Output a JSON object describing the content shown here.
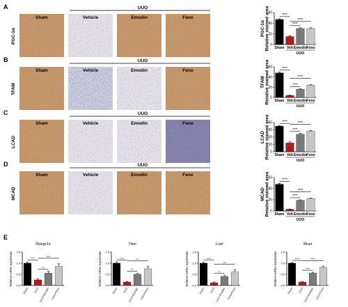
{
  "colors": {
    "sham": "#000000",
    "vehicle": "#b01c1c",
    "emodin": "#7a7a7a",
    "feno": "#c6c6c6",
    "tissue_brown": "#b0794a",
    "tissue_blue": "#7b88ad"
  },
  "panels": [
    {
      "letter": "A",
      "marker": "PGC-1α",
      "group_header": "UUO",
      "image_labels": [
        "Sham",
        "Vehicle",
        "Emodin",
        "Feno"
      ],
      "image_styles": [
        "brown",
        "light",
        "brown",
        "brown"
      ]
    },
    {
      "letter": "B",
      "marker": "TFAM",
      "group_header": "UUO",
      "image_labels": [
        "Sham",
        "Vehicle",
        "Emodin",
        "Feno"
      ],
      "image_styles": [
        "brown",
        "blue",
        "light",
        "brown"
      ]
    },
    {
      "letter": "C",
      "marker": "LCAD",
      "group_header": "UUO",
      "image_labels": [
        "Sham",
        "Vehicle",
        "Emodin",
        "Feno"
      ],
      "image_styles": [
        "brown",
        "light",
        "light",
        "dark"
      ]
    },
    {
      "letter": "D",
      "marker": "MCAD",
      "group_header": "UUO",
      "image_labels": [
        "Sham",
        "Vehicle",
        "Emodin",
        "Feno"
      ],
      "image_styles": [
        "brown",
        "light",
        "brown",
        "brown"
      ]
    }
  ],
  "chart_data": [
    {
      "type": "bar",
      "panel": "A",
      "ylabel_lines": [
        "PGC-1α",
        "Relative stained area"
      ],
      "categories": [
        "Sham",
        "Veh",
        "Emodin",
        "Feno"
      ],
      "group_label": "UUO",
      "values": [
        47,
        15,
        30,
        30
      ],
      "errors": [
        1.5,
        1.5,
        1.5,
        1.5
      ],
      "ylim": [
        0,
        60
      ],
      "yticks": [
        0,
        20,
        40,
        60
      ],
      "significance": [
        {
          "from": 0,
          "to": 1,
          "label": "****"
        },
        {
          "from": 1,
          "to": 2,
          "label": "****"
        },
        {
          "from": 1,
          "to": 3,
          "label": "****"
        }
      ]
    },
    {
      "type": "bar",
      "panel": "B",
      "ylabel_lines": [
        "TFAM",
        "Relative stained area"
      ],
      "categories": [
        "Sham",
        "Veh",
        "Emodin",
        "Feno"
      ],
      "group_label": "UUO",
      "values": [
        48,
        4,
        16,
        24
      ],
      "errors": [
        1.5,
        1,
        1,
        1
      ],
      "ylim": [
        0,
        60
      ],
      "yticks": [
        0,
        20,
        40,
        60
      ],
      "significance": [
        {
          "from": 0,
          "to": 1,
          "label": "****"
        },
        {
          "from": 1,
          "to": 2,
          "label": "****"
        },
        {
          "from": 1,
          "to": 3,
          "label": "****"
        }
      ]
    },
    {
      "type": "bar",
      "panel": "C",
      "ylabel_lines": [
        "LCAD",
        "Relative stained area"
      ],
      "categories": [
        "Sham",
        "Veh",
        "Emodin",
        "Feno"
      ],
      "group_label": "UUO",
      "values": [
        35,
        12,
        24,
        28
      ],
      "errors": [
        1,
        1.5,
        1,
        1
      ],
      "ylim": [
        0,
        40
      ],
      "yticks": [
        0,
        10,
        20,
        30,
        40
      ],
      "significance": [
        {
          "from": 0,
          "to": 1,
          "label": "****"
        },
        {
          "from": 1,
          "to": 2,
          "label": "****"
        },
        {
          "from": 1,
          "to": 3,
          "label": "****"
        }
      ]
    },
    {
      "type": "bar",
      "panel": "D",
      "ylabel_lines": [
        "MCAD",
        "Relative stained area"
      ],
      "categories": [
        "Sham",
        "Veh",
        "Emodin",
        "Feno"
      ],
      "group_label": "UUO",
      "values": [
        48,
        3,
        19,
        22
      ],
      "errors": [
        1.5,
        0.5,
        1,
        1
      ],
      "ylim": [
        0,
        60
      ],
      "yticks": [
        0,
        20,
        40,
        60
      ],
      "significance": [
        {
          "from": 0,
          "to": 1,
          "label": "****"
        },
        {
          "from": 1,
          "to": 2,
          "label": "****"
        },
        {
          "from": 1,
          "to": 3,
          "label": "****"
        }
      ]
    },
    {
      "type": "bar",
      "panel": "E",
      "title": "Ppargc1a",
      "ylabel": "Relative mRNA expression",
      "categories": [
        "Sham",
        "UUO",
        "UUO+Emodin",
        "UUO+Feno"
      ],
      "values": [
        1.0,
        0.25,
        0.55,
        0.85
      ],
      "errors": [
        0.05,
        0.04,
        0.08,
        0.12
      ],
      "ylim": [
        0,
        1.5
      ],
      "yticks": [
        0,
        0.5,
        1.0,
        1.5
      ],
      "significance": [
        {
          "from": 0,
          "to": 1,
          "label": "****"
        },
        {
          "from": 1,
          "to": 2,
          "label": "**"
        },
        {
          "from": 1,
          "to": 3,
          "label": "****"
        }
      ]
    },
    {
      "type": "bar",
      "panel": "E",
      "title": "Tfam",
      "ylabel": "Relative mRNA expression",
      "categories": [
        "Sham",
        "UUO",
        "UUO+Emodin",
        "UUO+Feno"
      ],
      "values": [
        1.0,
        0.15,
        0.5,
        0.75
      ],
      "errors": [
        0.04,
        0.03,
        0.05,
        0.1
      ],
      "ylim": [
        0,
        1.5
      ],
      "yticks": [
        0,
        0.5,
        1.0,
        1.5
      ],
      "significance": [
        {
          "from": 0,
          "to": 1,
          "label": "****"
        },
        {
          "from": 1,
          "to": 2,
          "label": "**"
        },
        {
          "from": 1,
          "to": 3,
          "label": "***"
        }
      ]
    },
    {
      "type": "bar",
      "panel": "E",
      "title": "Lcad",
      "ylabel": "Relative mRNA expression",
      "categories": [
        "Sham",
        "UUO",
        "UUO+Emodin",
        "UUO+Feno"
      ],
      "values": [
        1.0,
        0.12,
        0.4,
        0.6
      ],
      "errors": [
        0.04,
        0.04,
        0.05,
        0.1
      ],
      "ylim": [
        0,
        1.5
      ],
      "yticks": [
        0,
        0.5,
        1.0,
        1.5
      ],
      "significance": [
        {
          "from": 0,
          "to": 1,
          "label": "****"
        },
        {
          "from": 1,
          "to": 2,
          "label": "**"
        },
        {
          "from": 1,
          "to": 3,
          "label": "***"
        }
      ]
    },
    {
      "type": "bar",
      "panel": "E",
      "title": "Mcad",
      "ylabel": "Relative mRNA expression",
      "categories": [
        "Sham",
        "UUO",
        "UUO+Emodin",
        "UUO+Feno"
      ],
      "values": [
        1.0,
        0.15,
        0.55,
        0.8
      ],
      "errors": [
        0.03,
        0.02,
        0.04,
        0.06
      ],
      "ylim": [
        0,
        1.5
      ],
      "yticks": [
        0,
        0.5,
        1.0,
        1.5
      ],
      "significance": [
        {
          "from": 0,
          "to": 1,
          "label": "****"
        },
        {
          "from": 1,
          "to": 2,
          "label": "****"
        },
        {
          "from": 1,
          "to": 3,
          "label": "****"
        }
      ]
    }
  ],
  "panel_e_letter": "E"
}
